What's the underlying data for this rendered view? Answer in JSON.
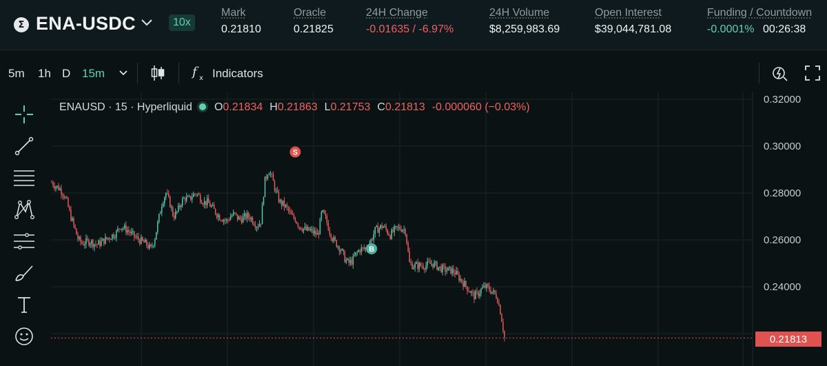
{
  "header": {
    "pair": "ENA-USDC",
    "leverage": "10x",
    "stats": [
      {
        "label": "Mark",
        "value": "0.21810"
      },
      {
        "label": "Oracle",
        "value": "0.21825"
      },
      {
        "label": "24H Change",
        "value": "-0.01635 / -6.97%"
      },
      {
        "label": "24H Volume",
        "value": "$8,259,983.69"
      },
      {
        "label": "Open Interest",
        "value": "$39,044,781.08"
      },
      {
        "label": "Funding / Countdown",
        "value": "-0.0001%",
        "value2": "00:26:38"
      }
    ]
  },
  "toolbar": {
    "timeframes": [
      "5m",
      "1h",
      "D",
      "15m"
    ],
    "active_timeframe": "15m",
    "indicators_label": "Indicators"
  },
  "legend": {
    "symbol": "ENAUSD · 15 · Hyperliquid",
    "o_label": "O",
    "o_value": "0.21834",
    "h_label": "H",
    "h_value": "0.21863",
    "l_label": "L",
    "l_value": "0.21753",
    "c_label": "C",
    "c_value": "0.21813",
    "change": "-0.000060 (−0.03%)"
  },
  "icons": [
    "crosshair-icon",
    "trend-line-icon",
    "horizontal-lines-icon",
    "pattern-icon",
    "measure-icon",
    "brush-icon",
    "text-icon",
    "emoji-icon",
    "candles-icon",
    "fx-icon",
    "alert-icon",
    "fullscreen-icon"
  ],
  "colors": {
    "up": "#5ed0b4",
    "down": "#ef6262",
    "price_tag": "#e0524f"
  },
  "chart_data": {
    "type": "candlestick",
    "title": "ENAUSD · 15 · Hyperliquid",
    "y_ticks": [
      "0.32000",
      "0.30000",
      "0.28000",
      "0.26000",
      "0.24000"
    ],
    "ylim": [
      0.216,
      0.323
    ],
    "last_price": "0.21813",
    "markers": [
      {
        "label": "S",
        "color": "#e0524f",
        "index": 64,
        "price": 0.2975
      },
      {
        "label": "B",
        "color": "#4fb3a0",
        "index": 84,
        "price": 0.2562
      }
    ],
    "close_path": [
      0.2845,
      0.283,
      0.282,
      0.28,
      0.276,
      0.27,
      0.265,
      0.26,
      0.2585,
      0.259,
      0.2595,
      0.2585,
      0.258,
      0.259,
      0.26,
      0.261,
      0.262,
      0.263,
      0.266,
      0.265,
      0.264,
      0.2625,
      0.261,
      0.26,
      0.259,
      0.258,
      0.256,
      0.26,
      0.268,
      0.276,
      0.28,
      0.276,
      0.27,
      0.272,
      0.276,
      0.278,
      0.277,
      0.279,
      0.28,
      0.278,
      0.276,
      0.276,
      0.274,
      0.272,
      0.27,
      0.269,
      0.268,
      0.27,
      0.271,
      0.269,
      0.269,
      0.27,
      0.27,
      0.268,
      0.266,
      0.268,
      0.285,
      0.29,
      0.286,
      0.28,
      0.276,
      0.275,
      0.273,
      0.27,
      0.269,
      0.266,
      0.265,
      0.264,
      0.264,
      0.263,
      0.262,
      0.272,
      0.269,
      0.264,
      0.26,
      0.258,
      0.256,
      0.252,
      0.25,
      0.251,
      0.254,
      0.256,
      0.256,
      0.257,
      0.26,
      0.264,
      0.265,
      0.266,
      0.264,
      0.262,
      0.264,
      0.265,
      0.265,
      0.264,
      0.25,
      0.249,
      0.249,
      0.249,
      0.249,
      0.2495,
      0.25,
      0.249,
      0.248,
      0.2475,
      0.247,
      0.247,
      0.246,
      0.244,
      0.242,
      0.24,
      0.238,
      0.236,
      0.237,
      0.239,
      0.24,
      0.239,
      0.2375,
      0.236,
      0.229,
      0.2183
    ]
  }
}
